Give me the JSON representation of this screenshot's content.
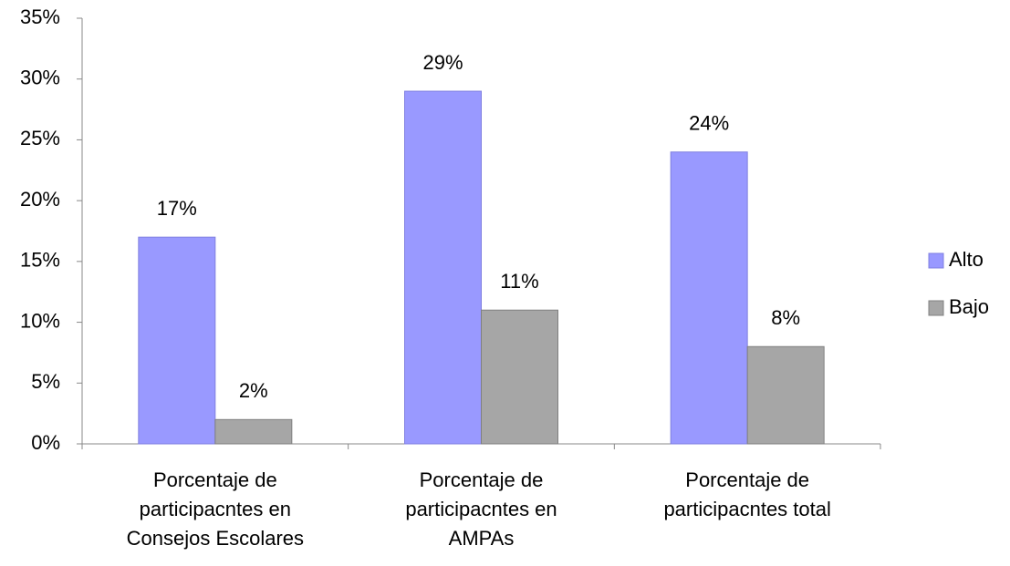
{
  "chart_data": {
    "type": "bar",
    "categories": [
      "Porcentaje de\nparticipacntes en\nConsejos Escolares",
      "Porcentaje de\nparticipacntes en\nAMPAs",
      "Porcentaje de\nparticipacntes total"
    ],
    "series": [
      {
        "name": "Alto",
        "color": "#9999ff",
        "values": [
          17,
          29,
          24
        ],
        "value_labels": [
          "17%",
          "29%",
          "24%"
        ]
      },
      {
        "name": "Bajo",
        "color": "#a6a6a6",
        "values": [
          2,
          11,
          8
        ],
        "value_labels": [
          "2%",
          "11%",
          "8%"
        ]
      }
    ],
    "ylim": [
      0,
      35
    ],
    "yticks": [
      {
        "value": 0,
        "label": "0%"
      },
      {
        "value": 5,
        "label": "5%"
      },
      {
        "value": 10,
        "label": "10%"
      },
      {
        "value": 15,
        "label": "15%"
      },
      {
        "value": 20,
        "label": "20%"
      },
      {
        "value": 25,
        "label": "25%"
      },
      {
        "value": 30,
        "label": "30%"
      },
      {
        "value": 35,
        "label": "35%"
      }
    ],
    "grid": false,
    "legend": "right"
  }
}
